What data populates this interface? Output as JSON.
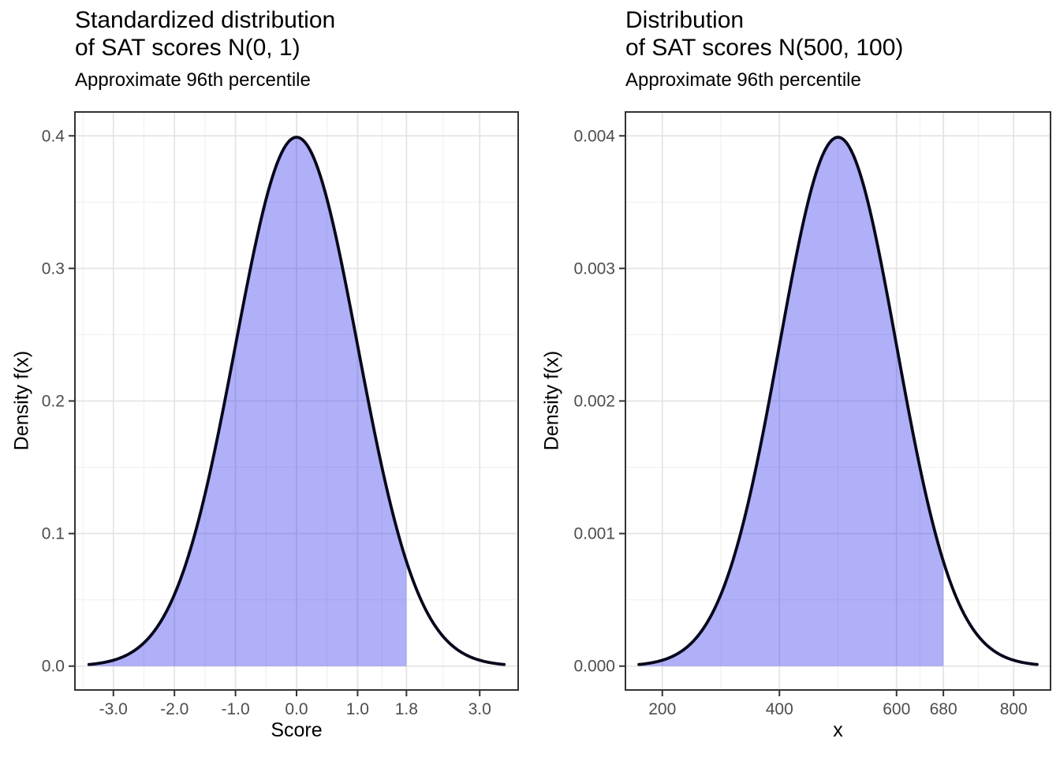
{
  "style": {
    "background": "#ffffff",
    "curve_color": "#08081c",
    "fill_color": "rgba(40,40,236,0.37)",
    "grid_major_color": "#e4e4e4",
    "grid_minor_color": "#f1f1f1",
    "panel_border_color": "#333333",
    "tick_color": "#333333",
    "tick_label_color": "#4d4d4d",
    "text_color": "#000000"
  },
  "chart_data": [
    {
      "type": "area",
      "title": "Standardized distribution\nof SAT scores N(0, 1)",
      "subtitle": "Approximate 96th percentile",
      "xlabel": "Score",
      "ylabel": "Density f(x)",
      "distribution": "normal",
      "mean": 0,
      "sd": 1,
      "peak_density": 0.3989,
      "curve_x_range": [
        -3.4,
        3.4
      ],
      "shaded_region": {
        "from": -3.4,
        "to": 1.8,
        "meaning": "area below approximate 96th percentile"
      },
      "x_ticks": [
        -3.0,
        -2.0,
        -1.0,
        0.0,
        1.0,
        1.8,
        3.0
      ],
      "x_tick_labels": [
        "-3.0",
        "-2.0",
        "-1.0",
        "0.0",
        "1.0",
        "1.8",
        "3.0"
      ],
      "x_minor_breaks": [
        -3.5,
        -2.5,
        -1.5,
        -0.5,
        0.5,
        1.4,
        2.4,
        3.6
      ],
      "y_ticks": [
        0.0,
        0.1,
        0.2,
        0.3,
        0.4
      ],
      "y_tick_labels": [
        "0.0",
        "0.1",
        "0.2",
        "0.3",
        "0.4"
      ],
      "y_minor_breaks": [
        0.05,
        0.15,
        0.25,
        0.35
      ],
      "xlim": [
        -3.63,
        3.63
      ],
      "ylim": [
        -0.018,
        0.418
      ],
      "grid": true,
      "legend": "none"
    },
    {
      "type": "area",
      "title": "Distribution\nof SAT scores N(500, 100)",
      "subtitle": "Approximate 96th percentile",
      "xlabel": "x",
      "ylabel": "Density f(x)",
      "distribution": "normal",
      "mean": 500,
      "sd": 100,
      "peak_density": 0.003989,
      "curve_x_range": [
        160,
        840
      ],
      "shaded_region": {
        "from": 160,
        "to": 680,
        "meaning": "area below approximate 96th percentile"
      },
      "x_ticks": [
        200,
        400,
        600,
        680,
        800
      ],
      "x_tick_labels": [
        "200",
        "400",
        "600",
        "680",
        "800"
      ],
      "x_minor_breaks": [
        300,
        500,
        640,
        740,
        860
      ],
      "y_ticks": [
        0.0,
        0.001,
        0.002,
        0.003,
        0.004
      ],
      "y_tick_labels": [
        "0.000",
        "0.001",
        "0.002",
        "0.003",
        "0.004"
      ],
      "y_minor_breaks": [
        0.0005,
        0.0015,
        0.0025,
        0.0035
      ],
      "xlim": [
        137,
        863
      ],
      "ylim": [
        -0.00018,
        0.00418
      ],
      "grid": true,
      "legend": "none"
    }
  ]
}
